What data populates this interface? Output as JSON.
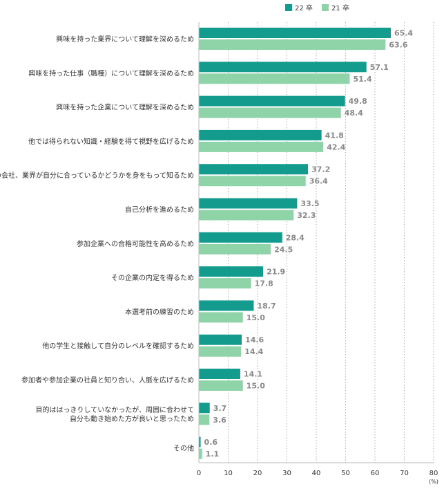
{
  "chart_data": {
    "type": "bar",
    "orientation": "horizontal",
    "categories": [
      "興味を持った業界について理解を深めるため",
      "興味を持った仕事（職種）について理解を深めるため",
      "興味を持った企業について理解を深めるため",
      "他では得られない知識・経験を得て視野を広げるため",
      "その会社、業界が自分に合っているかどうかを身をもって知るため",
      "自己分析を進めるため",
      "参加企業への合格可能性を高めるため",
      "その企業の内定を得るため",
      "本選考前の練習のため",
      "他の学生と接触して自分のレベルを確認するため",
      "参加者や参加企業の社員と知り合い、人脈を広げるため",
      "目的ははっきりしていなかったが、周囲に合わせて\n自分も動き始めた方が良いと思ったため",
      "その他"
    ],
    "series": [
      {
        "name": "22 卒",
        "color": "#139c8e",
        "values": [
          65.4,
          57.1,
          49.8,
          41.8,
          37.2,
          33.5,
          28.4,
          21.9,
          18.7,
          14.6,
          14.1,
          3.7,
          0.6
        ]
      },
      {
        "name": "21 卒",
        "color": "#8fd3a8",
        "values": [
          63.6,
          51.4,
          48.4,
          42.4,
          36.4,
          32.3,
          24.5,
          17.8,
          15.0,
          14.4,
          15.0,
          3.6,
          1.1
        ]
      }
    ],
    "xlim": [
      0,
      80
    ],
    "xticks": [
      0,
      10,
      20,
      30,
      40,
      50,
      60,
      70,
      80
    ],
    "unit": "(%)",
    "grid": "vertical-dotted",
    "legend": "top-right",
    "title": "",
    "xlabel": "",
    "ylabel": ""
  }
}
